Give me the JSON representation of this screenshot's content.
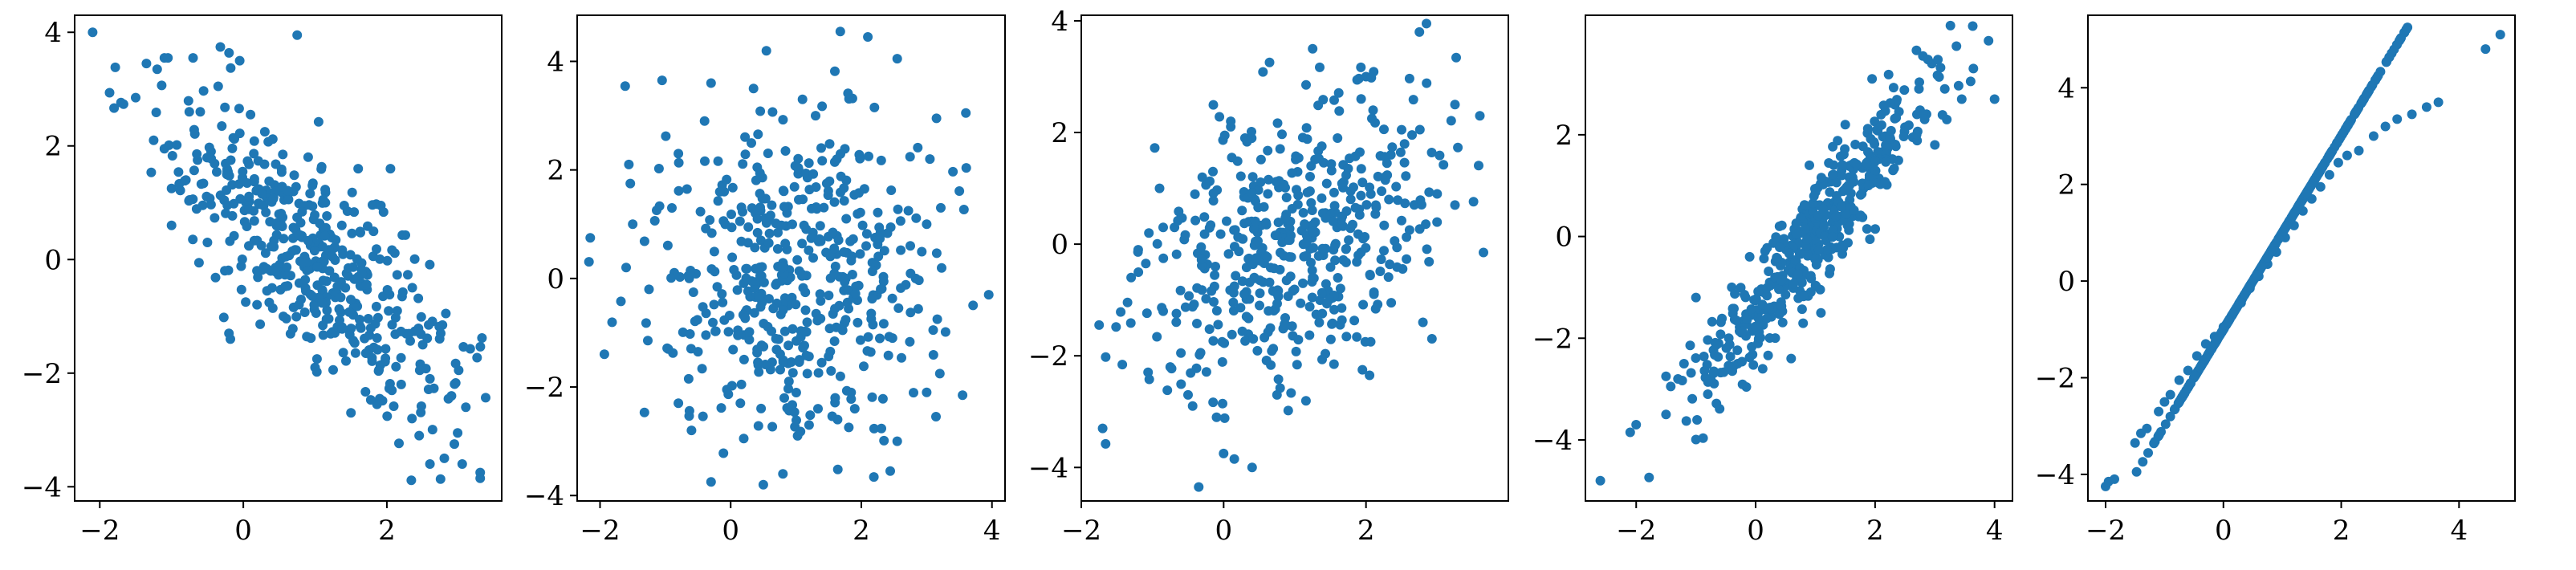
{
  "figure": {
    "marker_color": "#1f77b4",
    "background": "#ffffff"
  },
  "chart_data": [
    {
      "type": "scatter",
      "title": "",
      "xlabel": "",
      "ylabel": "",
      "xlim": [
        -2.35,
        3.6
      ],
      "ylim": [
        -4.25,
        4.3
      ],
      "xticks": [
        -2,
        0,
        2
      ],
      "yticks": [
        -4,
        -2,
        0,
        2,
        4
      ],
      "grid": false,
      "legend": null,
      "trend": {
        "slope": -1.0,
        "intercept": 1.0,
        "spread": 0.85
      },
      "points": [
        [
          -2.1,
          4.0
        ],
        [
          -1.5,
          2.85
        ],
        [
          -1.35,
          3.45
        ],
        [
          -1.2,
          3.35
        ],
        [
          -1.1,
          3.55
        ],
        [
          -1.05,
          3.55
        ],
        [
          -0.7,
          3.55
        ],
        [
          -0.35,
          3.05
        ],
        [
          -0.05,
          3.5
        ],
        [
          0.75,
          3.95
        ],
        [
          -1.25,
          2.1
        ],
        [
          -1.1,
          1.95
        ],
        [
          -1.0,
          1.25
        ],
        [
          -1.0,
          0.6
        ],
        [
          -0.8,
          1.4
        ],
        [
          -0.5,
          0.3
        ],
        [
          -0.2,
          -1.3
        ],
        [
          0.4,
          -0.5
        ],
        [
          1.2,
          -0.2
        ],
        [
          1.6,
          1.6
        ],
        [
          2.05,
          1.6
        ],
        [
          2.75,
          -1.3
        ],
        [
          3.05,
          -3.6
        ],
        [
          3.1,
          -2.6
        ],
        [
          3.3,
          -3.75
        ],
        [
          3.3,
          -3.85
        ],
        [
          2.6,
          -3.6
        ],
        [
          2.8,
          -3.5
        ],
        [
          1.5,
          -2.7
        ],
        [
          2.35,
          -2.8
        ],
        [
          2.6,
          -2.1
        ],
        [
          2.9,
          -2.4
        ],
        [
          3.0,
          -1.95
        ],
        [
          0.3,
          2.25
        ],
        [
          0.55,
          1.85
        ],
        [
          -0.6,
          2.6
        ],
        [
          -0.3,
          2.35
        ],
        [
          -0.75,
          1.05
        ],
        [
          1.0,
          -1.9
        ],
        [
          2.2,
          -2.2
        ],
        [
          1.9,
          -2.45
        ],
        [
          2.5,
          -1.5
        ],
        [
          -0.45,
          1.9
        ],
        [
          0.1,
          2.55
        ],
        [
          2.45,
          -3.1
        ]
      ]
    },
    {
      "type": "scatter",
      "title": "",
      "xlabel": "",
      "ylabel": "",
      "xlim": [
        -2.35,
        4.2
      ],
      "ylim": [
        -4.1,
        4.85
      ],
      "xticks": [
        -2,
        0,
        2,
        4
      ],
      "yticks": [
        -4,
        -2,
        0,
        2,
        4
      ],
      "grid": false,
      "legend": null,
      "trend": {
        "slope": 0.0,
        "intercept": 0.0,
        "spread": 1.5
      },
      "points": [
        [
          -2.15,
          0.75
        ],
        [
          -1.6,
          0.2
        ],
        [
          -1.5,
          1.0
        ],
        [
          -1.05,
          3.65
        ],
        [
          -0.3,
          3.6
        ],
        [
          0.35,
          3.5
        ],
        [
          2.1,
          4.45
        ],
        [
          2.55,
          4.05
        ],
        [
          3.15,
          2.95
        ],
        [
          3.6,
          3.05
        ],
        [
          3.95,
          -0.3
        ],
        [
          3.05,
          2.2
        ],
        [
          -0.3,
          -3.75
        ],
        [
          0.5,
          -3.8
        ],
        [
          1.2,
          -2.7
        ],
        [
          2.55,
          -3.0
        ],
        [
          3.0,
          -2.1
        ],
        [
          3.55,
          -2.15
        ],
        [
          -0.8,
          -2.3
        ],
        [
          -0.6,
          -2.8
        ],
        [
          1.9,
          -2.4
        ],
        [
          -0.1,
          1.6
        ],
        [
          1.1,
          3.3
        ],
        [
          2.2,
          3.15
        ],
        [
          -0.9,
          1.3
        ],
        [
          0.8,
          -3.6
        ],
        [
          1.3,
          3.0
        ],
        [
          -0.4,
          2.9
        ],
        [
          0.2,
          -2.95
        ],
        [
          1.6,
          -2.2
        ],
        [
          3.0,
          1.0
        ],
        [
          2.75,
          0.6
        ],
        [
          -1.25,
          -0.2
        ],
        [
          -0.8,
          2.3
        ],
        [
          3.1,
          -0.95
        ],
        [
          -0.5,
          -1.35
        ]
      ]
    },
    {
      "type": "scatter",
      "title": "",
      "xlabel": "",
      "ylabel": "",
      "xlim": [
        -2.0,
        4.0
      ],
      "ylim": [
        -4.6,
        4.1
      ],
      "xticks": [
        -2,
        0,
        2
      ],
      "yticks": [
        -4,
        -2,
        0,
        2,
        4
      ],
      "grid": false,
      "legend": null,
      "trend": {
        "slope": 0.5,
        "intercept": -0.5,
        "spread": 1.25
      },
      "points": [
        [
          -1.7,
          -3.3
        ],
        [
          -1.75,
          -1.45
        ],
        [
          -1.2,
          -0.1
        ],
        [
          -1.3,
          -0.6
        ],
        [
          -1.05,
          0.2
        ],
        [
          -0.85,
          0.3
        ],
        [
          -0.35,
          -4.35
        ],
        [
          0.0,
          -3.75
        ],
        [
          0.15,
          -3.85
        ],
        [
          0.4,
          -4.0
        ],
        [
          -0.1,
          -3.1
        ],
        [
          -0.75,
          -2.2
        ],
        [
          -0.5,
          -2.7
        ],
        [
          2.75,
          3.8
        ],
        [
          2.85,
          3.95
        ],
        [
          3.25,
          2.5
        ],
        [
          3.6,
          2.3
        ],
        [
          3.65,
          -0.15
        ],
        [
          3.25,
          0.7
        ],
        [
          3.0,
          0.9
        ],
        [
          1.25,
          3.5
        ],
        [
          2.0,
          3.0
        ],
        [
          2.1,
          2.4
        ],
        [
          -0.9,
          1.0
        ],
        [
          -0.85,
          -1.2
        ],
        [
          0.1,
          2.2
        ],
        [
          1.6,
          1.9
        ],
        [
          2.5,
          2.05
        ],
        [
          0.75,
          -2.7
        ],
        [
          1.55,
          -2.15
        ],
        [
          2.05,
          -2.35
        ],
        [
          1.95,
          -2.25
        ],
        [
          2.8,
          -1.4
        ],
        [
          -0.15,
          1.3
        ],
        [
          0.3,
          1.9
        ],
        [
          -0.3,
          1.2
        ],
        [
          2.35,
          1.6
        ],
        [
          1.4,
          -0.2
        ],
        [
          -0.6,
          -1.95
        ]
      ]
    },
    {
      "type": "scatter",
      "title": "",
      "xlabel": "",
      "ylabel": "",
      "xlim": [
        -2.85,
        4.3
      ],
      "ylim": [
        -5.2,
        4.35
      ],
      "xticks": [
        -2,
        0,
        2,
        4
      ],
      "yticks": [
        -4,
        -2,
        0,
        2
      ],
      "grid": false,
      "legend": null,
      "trend": {
        "slope": 1.5,
        "intercept": -1.5,
        "spread": 0.55
      },
      "points": [
        [
          -2.6,
          -4.8
        ],
        [
          -2.1,
          -3.85
        ],
        [
          -2.0,
          -3.7
        ],
        [
          -1.5,
          -3.5
        ],
        [
          -1.5,
          -2.75
        ],
        [
          -1.3,
          -2.8
        ],
        [
          -1.2,
          -2.5
        ],
        [
          -0.8,
          -3.1
        ],
        [
          -1.0,
          -1.2
        ],
        [
          -0.4,
          -1.0
        ],
        [
          -0.1,
          -0.4
        ],
        [
          3.9,
          3.85
        ],
        [
          4.0,
          2.7
        ],
        [
          3.6,
          3.05
        ],
        [
          3.45,
          2.7
        ],
        [
          2.8,
          3.55
        ],
        [
          2.95,
          3.4
        ],
        [
          2.7,
          2.4
        ],
        [
          1.95,
          3.1
        ],
        [
          1.5,
          2.2
        ],
        [
          0.9,
          1.4
        ],
        [
          2.5,
          2.15
        ],
        [
          3.0,
          1.8
        ],
        [
          1.4,
          0.0
        ],
        [
          -0.3,
          -2.5
        ],
        [
          -0.45,
          -2.0
        ],
        [
          -0.7,
          -2.65
        ],
        [
          0.4,
          0.2
        ],
        [
          3.2,
          2.3
        ],
        [
          2.3,
          1.3
        ]
      ]
    },
    {
      "type": "scatter",
      "title": "",
      "xlabel": "",
      "ylabel": "",
      "xlim": [
        -2.3,
        4.95
      ],
      "ylim": [
        -4.55,
        5.5
      ],
      "xticks": [
        -2,
        0,
        2,
        4
      ],
      "yticks": [
        -4,
        -2,
        0,
        2,
        4
      ],
      "grid": false,
      "legend": null,
      "trend": {
        "slope": 2.0,
        "intercept": -1.0,
        "spread": 0.0
      },
      "points": [
        [
          -2.0,
          -4.25
        ],
        [
          -1.95,
          -4.15
        ],
        [
          -1.85,
          -4.1
        ],
        [
          -1.5,
          -3.35
        ],
        [
          -1.4,
          -3.15
        ],
        [
          -1.3,
          -3.05
        ],
        [
          -1.1,
          -2.7
        ],
        [
          -1.0,
          -2.5
        ],
        [
          -0.9,
          -2.35
        ],
        [
          -0.75,
          -2.05
        ],
        [
          -0.6,
          -1.85
        ],
        [
          -0.45,
          -1.55
        ],
        [
          -0.3,
          -1.3
        ],
        [
          -0.15,
          -1.15
        ],
        [
          0.0,
          -0.95
        ],
        [
          0.15,
          -0.7
        ],
        [
          0.3,
          -0.45
        ],
        [
          0.45,
          -0.15
        ],
        [
          0.6,
          0.1
        ],
        [
          0.75,
          0.35
        ],
        [
          0.9,
          0.6
        ],
        [
          1.05,
          0.9
        ],
        [
          1.2,
          1.15
        ],
        [
          1.35,
          1.45
        ],
        [
          1.5,
          1.7
        ],
        [
          1.65,
          1.95
        ],
        [
          1.8,
          2.2
        ],
        [
          1.95,
          2.45
        ],
        [
          2.1,
          2.6
        ],
        [
          2.3,
          2.7
        ],
        [
          2.55,
          3.0
        ],
        [
          2.75,
          3.2
        ],
        [
          2.95,
          3.35
        ],
        [
          3.2,
          3.45
        ],
        [
          3.45,
          3.6
        ],
        [
          3.65,
          3.7
        ],
        [
          4.45,
          4.8
        ],
        [
          4.7,
          5.1
        ]
      ]
    }
  ]
}
